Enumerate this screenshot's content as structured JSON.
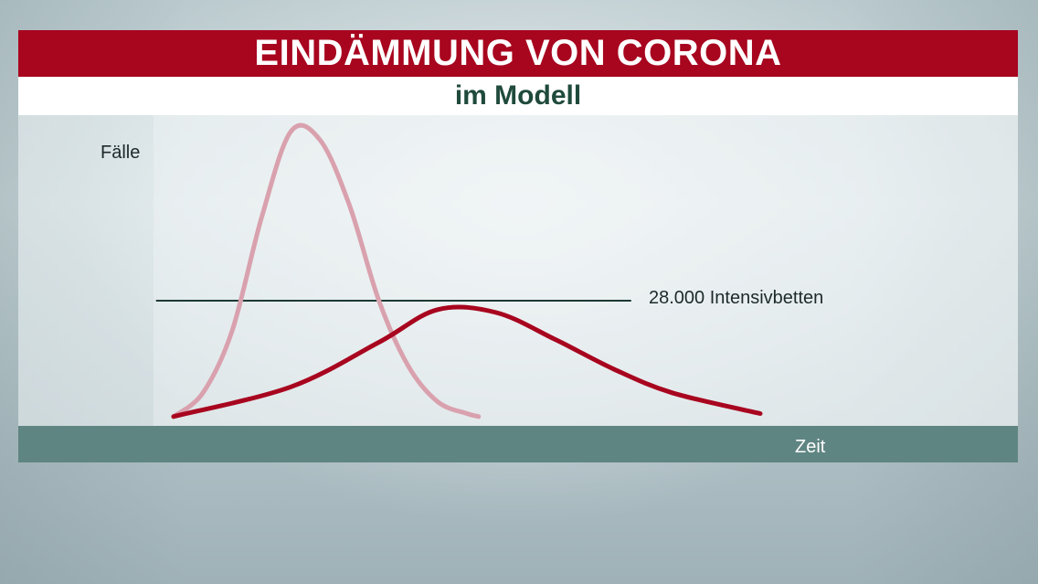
{
  "header": {
    "title": "EINDÄMMUNG VON CORONA",
    "subtitle": "im Modell"
  },
  "colors": {
    "title_background": "#a8051f",
    "subtitle_text": "#1f4a3c",
    "floor_bar": "#5f8582",
    "uncontained_curve": "#d9a1ae",
    "contained_curve": "#a8051f",
    "capacity_line": "#1c3a33"
  },
  "chart_data": {
    "type": "line",
    "title": "EINDÄMMUNG VON CORONA",
    "subtitle": "im Modell",
    "xlabel": "Zeit",
    "ylabel": "Fälle",
    "xlim": [
      0,
      100
    ],
    "ylim": [
      0,
      100
    ],
    "grid": false,
    "series": [
      {
        "color": "#d9a1ae",
        "x": [
          0,
          5,
          10,
          15,
          20,
          25,
          30,
          35,
          40,
          45,
          50,
          52
        ],
        "y": [
          1,
          9,
          30,
          68,
          97,
          94,
          72,
          40,
          18,
          6,
          2,
          1
        ]
      },
      {
        "color": "#a8051f",
        "x": [
          0,
          20,
          35,
          45,
          55,
          65,
          75,
          85,
          100
        ],
        "y": [
          1,
          11,
          26,
          37,
          36,
          27,
          17,
          9,
          2
        ]
      }
    ],
    "annotations": [
      {
        "type": "hline",
        "y": 40,
        "x_start": -3,
        "x_end": 78,
        "label": "28.000 Intensivbetten"
      }
    ]
  }
}
